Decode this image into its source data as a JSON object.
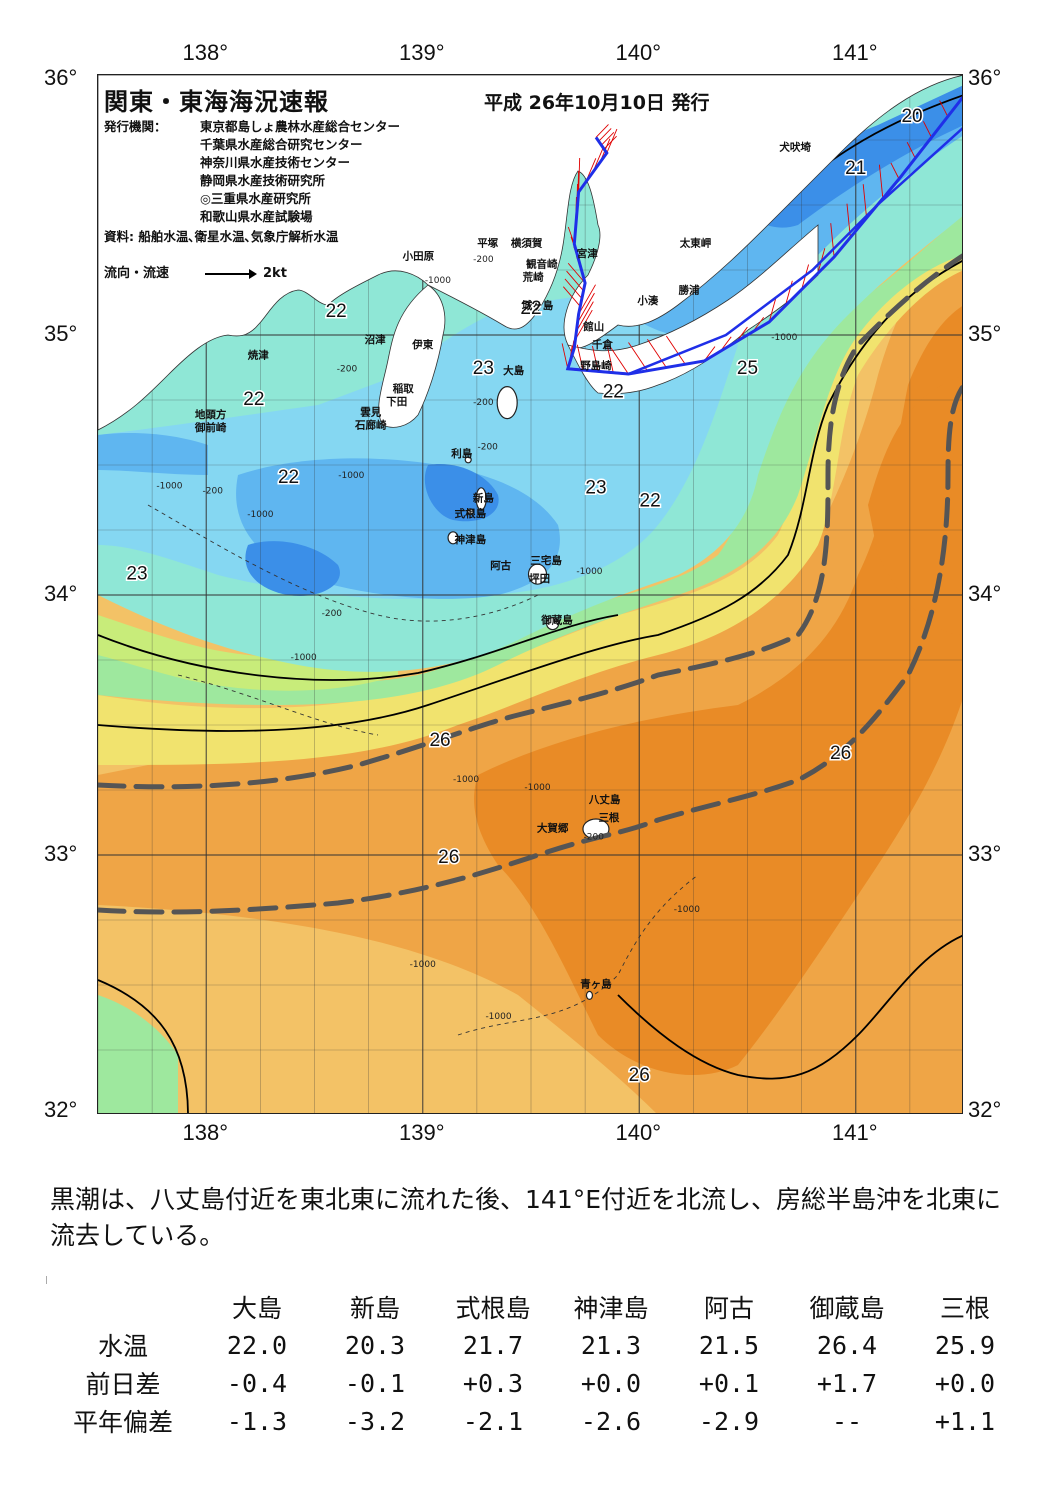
{
  "header": {
    "title": "関東・東海海況速報",
    "issue_date": "平成 26年10月10日 発行",
    "agency_label": "発行機関：",
    "agencies": [
      "東京都島しょ農林水産総合センター",
      "千葉県水産総合研究センター",
      "神奈川県水産技術センター",
      "静岡県水産技術研究所",
      "◎三重県水産研究所",
      "和歌山県水産試験場"
    ],
    "sources": "資料: 船舶水温､衛星水温､気象庁解析水温",
    "legend_label": "流向・流速",
    "legend_scale": "2kt"
  },
  "axes": {
    "lon_labels": [
      "138°",
      "139°",
      "140°",
      "141°"
    ],
    "lat_labels": [
      "36°",
      "35°",
      "34°",
      "33°",
      "32°"
    ],
    "lon_range": [
      137.5,
      141.5
    ],
    "lat_range": [
      32,
      36
    ]
  },
  "map": {
    "colors": {
      "land": "#ffffff",
      "very_cold": "#3b8fe8",
      "cold": "#5fb6f0",
      "cool": "#85d7f2",
      "mild": "#8fe7d6",
      "green": "#9ee89e",
      "lime": "#c8ec7a",
      "yellow": "#f1e36e",
      "pale_orange": "#f3c266",
      "orange": "#efa546",
      "deep_orange": "#e98b26",
      "kuroshio_axis": "#555555",
      "flow_vector": "#e00000",
      "ship_track": "#1f2fe8"
    },
    "temperature_labels": [
      {
        "text": "20",
        "lon": 141.26,
        "lat": 35.82
      },
      {
        "text": "21",
        "lon": 141.0,
        "lat": 35.62
      },
      {
        "text": "22",
        "lon": 138.6,
        "lat": 35.07
      },
      {
        "text": "22",
        "lon": 138.22,
        "lat": 34.73
      },
      {
        "text": "22",
        "lon": 139.5,
        "lat": 35.08
      },
      {
        "text": "22",
        "lon": 139.88,
        "lat": 34.76
      },
      {
        "text": "22",
        "lon": 138.38,
        "lat": 34.43
      },
      {
        "text": "22",
        "lon": 140.05,
        "lat": 34.34
      },
      {
        "text": "23",
        "lon": 139.28,
        "lat": 34.85
      },
      {
        "text": "23",
        "lon": 139.8,
        "lat": 34.39
      },
      {
        "text": "23",
        "lon": 137.68,
        "lat": 34.06
      },
      {
        "text": "25",
        "lon": 140.5,
        "lat": 34.85
      },
      {
        "text": "26",
        "lon": 139.08,
        "lat": 33.42
      },
      {
        "text": "26",
        "lon": 140.93,
        "lat": 33.37
      },
      {
        "text": "26",
        "lon": 139.12,
        "lat": 32.97
      },
      {
        "text": "26",
        "lon": 140.0,
        "lat": 32.13
      }
    ],
    "depth_labels": [
      {
        "text": "-200",
        "lon": 139.28,
        "lat": 35.28
      },
      {
        "text": "-1000",
        "lon": 139.07,
        "lat": 35.2
      },
      {
        "text": "-200",
        "lon": 138.65,
        "lat": 34.86
      },
      {
        "text": "-200",
        "lon": 139.28,
        "lat": 34.73
      },
      {
        "text": "-200",
        "lon": 139.3,
        "lat": 34.56
      },
      {
        "text": "-1000",
        "lon": 138.67,
        "lat": 34.45
      },
      {
        "text": "-200",
        "lon": 138.03,
        "lat": 34.39
      },
      {
        "text": "-1000",
        "lon": 137.83,
        "lat": 34.41
      },
      {
        "text": "-1000",
        "lon": 138.25,
        "lat": 34.3
      },
      {
        "text": "-200",
        "lon": 138.58,
        "lat": 33.92
      },
      {
        "text": "-1000",
        "lon": 138.45,
        "lat": 33.75
      },
      {
        "text": "-1000",
        "lon": 139.77,
        "lat": 34.08
      },
      {
        "text": "-1000",
        "lon": 140.67,
        "lat": 34.98
      },
      {
        "text": "-1000",
        "lon": 139.2,
        "lat": 33.28
      },
      {
        "text": "-1000",
        "lon": 139.53,
        "lat": 33.25
      },
      {
        "text": "-200",
        "lon": 139.79,
        "lat": 33.06
      },
      {
        "text": "-1000",
        "lon": 140.22,
        "lat": 32.78
      },
      {
        "text": "-1000",
        "lon": 139.0,
        "lat": 32.57
      },
      {
        "text": "-1000",
        "lon": 139.35,
        "lat": 32.37
      }
    ],
    "place_labels": [
      {
        "text": "犬吠埼",
        "lon": 140.72,
        "lat": 35.71
      },
      {
        "text": "太東岬",
        "lon": 140.26,
        "lat": 35.34
      },
      {
        "text": "勝浦",
        "lon": 140.23,
        "lat": 35.16
      },
      {
        "text": "小湊",
        "lon": 140.04,
        "lat": 35.12
      },
      {
        "text": "横須賀",
        "lon": 139.48,
        "lat": 35.34
      },
      {
        "text": "平塚",
        "lon": 139.3,
        "lat": 35.34
      },
      {
        "text": "宮津",
        "lon": 139.76,
        "lat": 35.3
      },
      {
        "text": "小田原",
        "lon": 138.98,
        "lat": 35.29
      },
      {
        "text": "観音崎",
        "lon": 139.55,
        "lat": 35.26
      },
      {
        "text": "荒崎",
        "lon": 139.51,
        "lat": 35.21
      },
      {
        "text": "城ヶ島",
        "lon": 139.53,
        "lat": 35.1
      },
      {
        "text": "館山",
        "lon": 139.79,
        "lat": 35.02
      },
      {
        "text": "千倉",
        "lon": 139.83,
        "lat": 34.95
      },
      {
        "text": "野島崎",
        "lon": 139.8,
        "lat": 34.87
      },
      {
        "text": "沼津",
        "lon": 138.78,
        "lat": 34.97
      },
      {
        "text": "伊東",
        "lon": 139.0,
        "lat": 34.95
      },
      {
        "text": "焼津",
        "lon": 138.24,
        "lat": 34.91
      },
      {
        "text": "稲取",
        "lon": 138.91,
        "lat": 34.78
      },
      {
        "text": "下田",
        "lon": 138.88,
        "lat": 34.73
      },
      {
        "text": "雲見",
        "lon": 138.76,
        "lat": 34.69
      },
      {
        "text": "石廊崎",
        "lon": 138.76,
        "lat": 34.64
      },
      {
        "text": "地頭方",
        "lon": 138.02,
        "lat": 34.68
      },
      {
        "text": "御前崎",
        "lon": 138.02,
        "lat": 34.63
      },
      {
        "text": "大島",
        "lon": 139.42,
        "lat": 34.85
      },
      {
        "text": "利島",
        "lon": 139.18,
        "lat": 34.53
      },
      {
        "text": "新島",
        "lon": 139.28,
        "lat": 34.36
      },
      {
        "text": "式根島",
        "lon": 139.22,
        "lat": 34.3
      },
      {
        "text": "神津島",
        "lon": 139.22,
        "lat": 34.2
      },
      {
        "text": "阿古",
        "lon": 139.36,
        "lat": 34.1
      },
      {
        "text": "三宅島",
        "lon": 139.57,
        "lat": 34.12
      },
      {
        "text": "坪田",
        "lon": 139.54,
        "lat": 34.05
      },
      {
        "text": "御蔵島",
        "lon": 139.62,
        "lat": 33.89
      },
      {
        "text": "八丈島",
        "lon": 139.84,
        "lat": 33.2
      },
      {
        "text": "三根",
        "lon": 139.86,
        "lat": 33.13
      },
      {
        "text": "大賀郷",
        "lon": 139.6,
        "lat": 33.09
      },
      {
        "text": "青ヶ島",
        "lon": 139.8,
        "lat": 32.49
      }
    ]
  },
  "summary": "黒潮は、八丈島付近を東北東に流れた後、141°E付近を北流し、房総半島沖を北東に流去している。",
  "table": {
    "stations": [
      "大島",
      "新島",
      "式根島",
      "神津島",
      "阿古",
      "御蔵島",
      "三根"
    ],
    "rows": [
      {
        "label": "水温",
        "values": [
          "22.0",
          "20.3",
          "21.7",
          "21.3",
          "21.5",
          "26.4",
          "25.9"
        ]
      },
      {
        "label": "前日差",
        "values": [
          "-0.4",
          "-0.1",
          "+0.3",
          "+0.0",
          "+0.1",
          "+1.7",
          "+0.0"
        ]
      },
      {
        "label": "平年偏差",
        "values": [
          "-1.3",
          "-3.2",
          "-2.1",
          "-2.6",
          "-2.9",
          "--",
          "+1.1"
        ]
      }
    ]
  }
}
